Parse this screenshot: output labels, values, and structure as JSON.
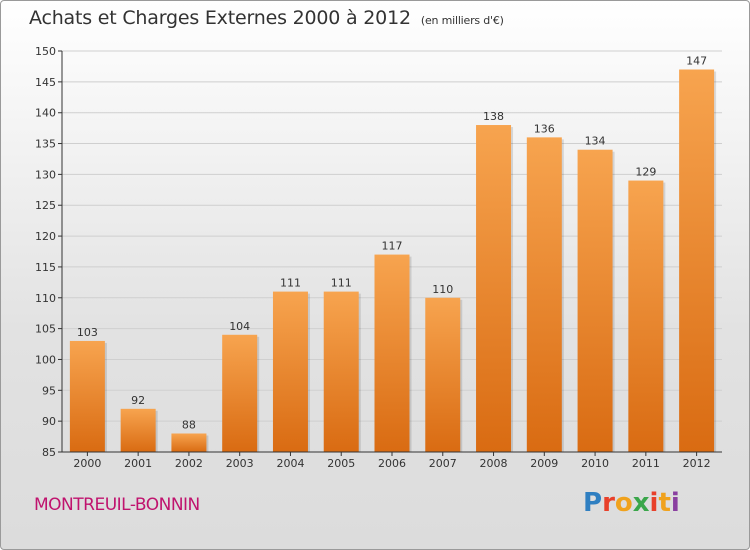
{
  "header": {
    "title": "Achats et Charges Externes 2000 à 2012",
    "subtitle": "(en milliers d'€)"
  },
  "footer": {
    "town": "MONTREUIL-BONNIN",
    "logo_letters": [
      "P",
      "r",
      "o",
      "x",
      "i",
      "t",
      "i"
    ],
    "logo_colors": [
      "#2f7fc1",
      "#e8402a",
      "#f0a21d",
      "#3aa64a",
      "#e8402a",
      "#f0a21d",
      "#8a3fa0"
    ]
  },
  "colors": {
    "bar_top": "#f7a44f",
    "bar_bottom": "#d96b12",
    "grid": "#cfcfcf",
    "axis": "#333333"
  },
  "chart_data": {
    "type": "bar",
    "title": "Achats et Charges Externes 2000 à 2012",
    "categories": [
      "2000",
      "2001",
      "2002",
      "2003",
      "2004",
      "2005",
      "2006",
      "2007",
      "2008",
      "2009",
      "2010",
      "2011",
      "2012"
    ],
    "values": [
      103,
      92,
      88,
      104,
      111,
      111,
      117,
      110,
      138,
      136,
      134,
      129,
      147
    ],
    "ylim": [
      85,
      150
    ],
    "yticks": [
      85,
      90,
      95,
      100,
      105,
      110,
      115,
      120,
      125,
      130,
      135,
      140,
      145,
      150
    ],
    "grid": true,
    "xlabel": "",
    "ylabel": ""
  }
}
